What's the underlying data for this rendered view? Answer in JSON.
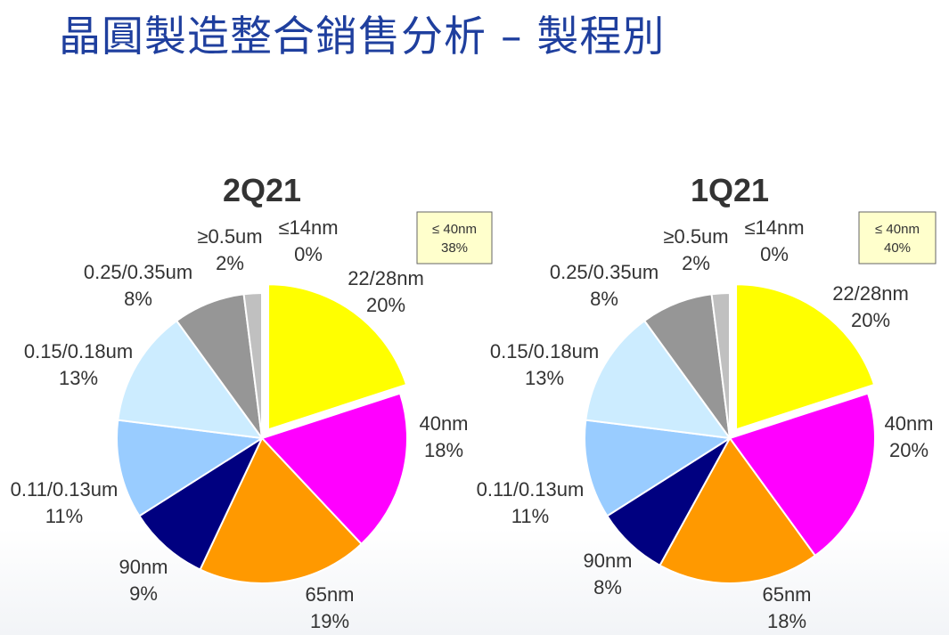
{
  "page": {
    "title": "晶圓製造整合銷售分析 – 製程別"
  },
  "chart_data": [
    {
      "type": "pie",
      "title": "2Q21",
      "highlight_box": {
        "line1": "≤ 40nm",
        "line2": "38%"
      },
      "slices": [
        {
          "label": "22/28nm",
          "pct_text": "20%",
          "value": 20,
          "color": "#FFFF00",
          "exploded": true
        },
        {
          "label": "40nm",
          "pct_text": "18%",
          "value": 18,
          "color": "#FF00FF"
        },
        {
          "label": "65nm",
          "pct_text": "19%",
          "value": 19,
          "color": "#FF9900"
        },
        {
          "label": "90nm",
          "pct_text": "9%",
          "value": 9,
          "color": "#000080"
        },
        {
          "label": "0.11/0.13um",
          "pct_text": "11%",
          "value": 11,
          "color": "#99CCFF"
        },
        {
          "label": "0.15/0.18um",
          "pct_text": "13%",
          "value": 13,
          "color": "#CCECFF"
        },
        {
          "label": "0.25/0.35um",
          "pct_text": "8%",
          "value": 8,
          "color": "#969696"
        },
        {
          "label": "≥0.5um",
          "pct_text": "2%",
          "value": 2,
          "color": "#C0C0C0"
        },
        {
          "label": "≤14nm",
          "pct_text": "0%",
          "value": 0,
          "color": "#FFFFFF"
        }
      ]
    },
    {
      "type": "pie",
      "title": "1Q21",
      "highlight_box": {
        "line1": "≤ 40nm",
        "line2": "40%"
      },
      "slices": [
        {
          "label": "22/28nm",
          "pct_text": "20%",
          "value": 20,
          "color": "#FFFF00",
          "exploded": true
        },
        {
          "label": "40nm",
          "pct_text": "20%",
          "value": 20,
          "color": "#FF00FF"
        },
        {
          "label": "65nm",
          "pct_text": "18%",
          "value": 18,
          "color": "#FF9900"
        },
        {
          "label": "90nm",
          "pct_text": "8%",
          "value": 8,
          "color": "#000080"
        },
        {
          "label": "0.11/0.13um",
          "pct_text": "11%",
          "value": 11,
          "color": "#99CCFF"
        },
        {
          "label": "0.15/0.18um",
          "pct_text": "13%",
          "value": 13,
          "color": "#CCECFF"
        },
        {
          "label": "0.25/0.35um",
          "pct_text": "8%",
          "value": 8,
          "color": "#969696"
        },
        {
          "label": "≥0.5um",
          "pct_text": "2%",
          "value": 2,
          "color": "#C0C0C0"
        },
        {
          "label": "≤14nm",
          "pct_text": "0%",
          "value": 0,
          "color": "#FFFFFF"
        }
      ]
    }
  ]
}
